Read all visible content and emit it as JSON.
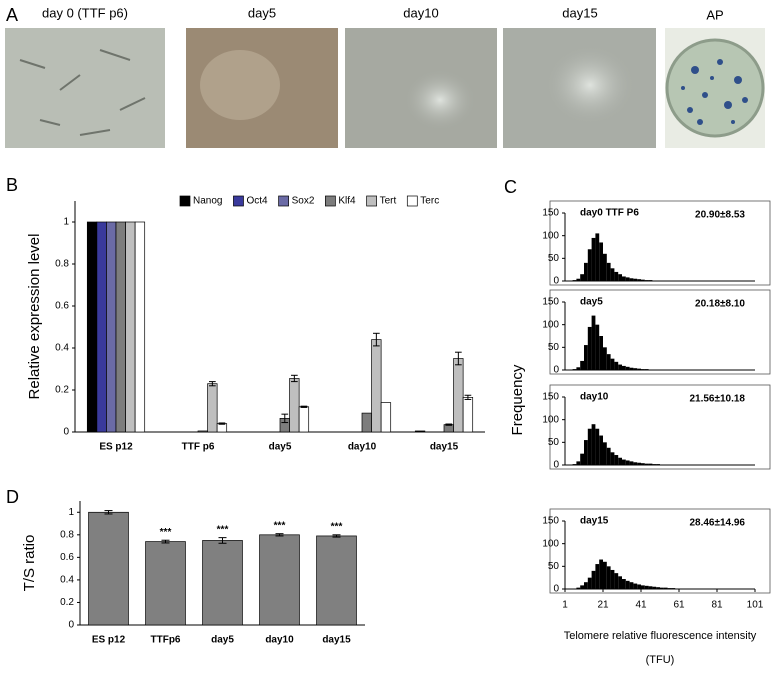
{
  "panel_labels": [
    "A",
    "B",
    "C",
    "D"
  ],
  "images": {
    "captions": [
      "day 0 (TTF p6)",
      "day5",
      "day10",
      "day15",
      "AP"
    ]
  },
  "panel_c": {
    "ylabel": "Frequency",
    "xlabel": "Telomere relative fluorescence intensity",
    "xlabel_unit": "(TFU)"
  },
  "chart_data": [
    {
      "type": "bar",
      "ylabel": "Relative expression level",
      "categories": [
        "ES p12",
        "TTF p6",
        "day5",
        "day10",
        "day15"
      ],
      "series": [
        {
          "name": "Nanog",
          "color": "#000000",
          "values": [
            1,
            0,
            0,
            0,
            0.005
          ],
          "errors": [
            0,
            0,
            0,
            0,
            0
          ]
        },
        {
          "name": "Oct4",
          "color": "#3a3a9c",
          "values": [
            1,
            0,
            0,
            0,
            0
          ],
          "errors": [
            0,
            0,
            0,
            0,
            0
          ]
        },
        {
          "name": "Sox2",
          "color": "#6b6ba6",
          "values": [
            1,
            0,
            0,
            0,
            0
          ],
          "errors": [
            0,
            0,
            0,
            0,
            0
          ]
        },
        {
          "name": "Klf4",
          "color": "#7d7d7d",
          "values": [
            1,
            0.005,
            0.065,
            0.09,
            0.035
          ],
          "errors": [
            0,
            0,
            0.02,
            0,
            0.003
          ]
        },
        {
          "name": "Tert",
          "color": "#bfbfbf",
          "values": [
            1,
            0.23,
            0.255,
            0.44,
            0.35
          ],
          "errors": [
            0,
            0.01,
            0.015,
            0.03,
            0.03
          ]
        },
        {
          "name": "Terc",
          "color": "#ffffff",
          "values": [
            1,
            0.04,
            0.12,
            0.14,
            0.165
          ],
          "errors": [
            0,
            0.003,
            0.003,
            0,
            0.01
          ]
        }
      ],
      "ylim": [
        0,
        1.1
      ],
      "yticks": [
        0,
        0.2,
        0.4,
        0.6,
        0.8,
        1
      ],
      "legend": "top"
    },
    {
      "type": "bar",
      "ylabel": "T/S ratio",
      "categories": [
        "ES p12",
        "TTFp6",
        "day5",
        "day10",
        "day15"
      ],
      "values": [
        1.0,
        0.74,
        0.75,
        0.8,
        0.79
      ],
      "errors": [
        0.015,
        0.012,
        0.025,
        0.01,
        0.01
      ],
      "significance": [
        null,
        "***",
        "***",
        "***",
        "***"
      ],
      "color": "#808080",
      "ylim": [
        0,
        1.1
      ],
      "yticks": [
        0,
        0.2,
        0.4,
        0.6,
        0.8,
        1
      ]
    },
    {
      "type": "histogram",
      "label": "day0 TTF P6",
      "stat": "20.90±8.53",
      "color": "#000000",
      "bins": [
        5,
        7,
        9,
        11,
        13,
        15,
        17,
        19,
        21,
        23,
        25,
        27,
        29,
        31,
        33,
        35,
        37,
        39,
        41,
        43,
        45,
        47,
        49,
        51,
        53,
        55,
        57,
        59,
        61,
        63,
        65
      ],
      "counts": [
        2,
        5,
        15,
        40,
        70,
        95,
        105,
        85,
        60,
        40,
        28,
        20,
        15,
        10,
        8,
        6,
        5,
        4,
        3,
        2,
        2,
        1,
        1,
        1,
        1,
        0,
        0,
        0,
        0,
        0
      ],
      "xlim": [
        1,
        101
      ],
      "ylim": [
        0,
        150
      ],
      "yticks": [
        0,
        50,
        100,
        150
      ]
    },
    {
      "type": "histogram",
      "label": "day5",
      "stat": "20.18±8.10",
      "color": "#000000",
      "bins": [
        5,
        7,
        9,
        11,
        13,
        15,
        17,
        19,
        21,
        23,
        25,
        27,
        29,
        31,
        33,
        35,
        37,
        39,
        41,
        43,
        45,
        47,
        49,
        51,
        53,
        55,
        57,
        59,
        61,
        63,
        65
      ],
      "counts": [
        2,
        6,
        20,
        55,
        95,
        120,
        100,
        75,
        50,
        35,
        25,
        18,
        12,
        9,
        7,
        5,
        4,
        3,
        2,
        2,
        1,
        1,
        1,
        1,
        0,
        0,
        0,
        0,
        0,
        0
      ],
      "xlim": [
        1,
        101
      ],
      "ylim": [
        0,
        150
      ],
      "yticks": [
        0,
        50,
        100,
        150
      ]
    },
    {
      "type": "histogram",
      "label": "day10",
      "stat": "21.56±10.18",
      "color": "#000000",
      "bins": [
        5,
        7,
        9,
        11,
        13,
        15,
        17,
        19,
        21,
        23,
        25,
        27,
        29,
        31,
        33,
        35,
        37,
        39,
        41,
        43,
        45,
        47,
        49,
        51,
        53,
        55,
        57,
        59,
        61,
        63,
        65
      ],
      "counts": [
        2,
        8,
        25,
        55,
        80,
        90,
        80,
        65,
        50,
        38,
        28,
        22,
        16,
        12,
        10,
        8,
        6,
        5,
        4,
        3,
        3,
        2,
        2,
        1,
        1,
        1,
        0,
        0,
        0,
        0
      ],
      "xlim": [
        1,
        101
      ],
      "ylim": [
        0,
        150
      ],
      "yticks": [
        0,
        50,
        100,
        150
      ]
    },
    {
      "type": "histogram",
      "label": "day15",
      "stat": "28.46±14.96",
      "color": "#000000",
      "bins": [
        5,
        7,
        9,
        11,
        13,
        15,
        17,
        19,
        21,
        23,
        25,
        27,
        29,
        31,
        33,
        35,
        37,
        39,
        41,
        43,
        45,
        47,
        49,
        51,
        53,
        55,
        57,
        59,
        61,
        63,
        65
      ],
      "counts": [
        1,
        3,
        8,
        15,
        25,
        40,
        55,
        65,
        60,
        50,
        42,
        35,
        28,
        22,
        18,
        15,
        12,
        10,
        8,
        7,
        6,
        5,
        4,
        3,
        3,
        2,
        2,
        1,
        1,
        1
      ],
      "xlim": [
        1,
        101
      ],
      "ylim": [
        0,
        150
      ],
      "yticks": [
        0,
        50,
        100,
        150
      ],
      "xticks": [
        1,
        21,
        41,
        61,
        81,
        101
      ]
    }
  ]
}
